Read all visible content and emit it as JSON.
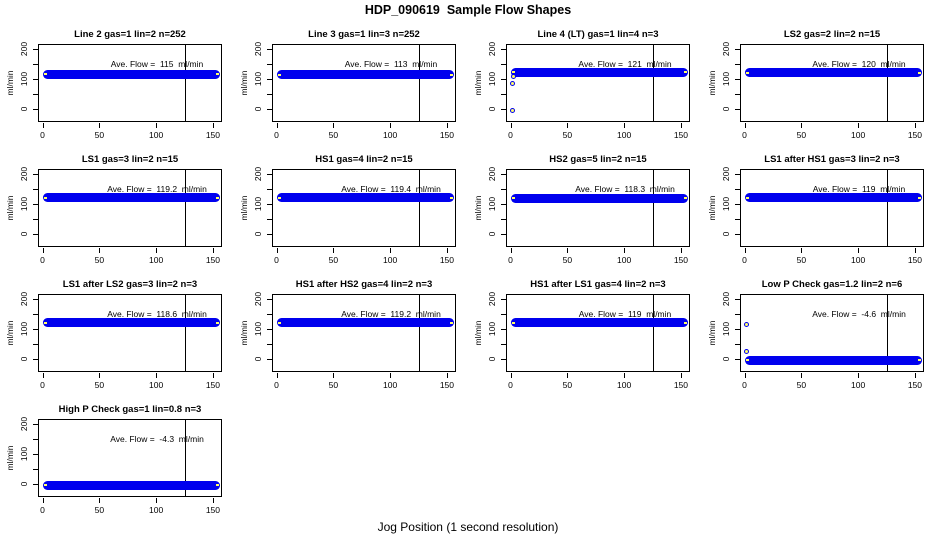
{
  "figure": {
    "title": "HDP_090619  Sample Flow Shapes",
    "xlabel": "Jog Position (1 second resolution)"
  },
  "chart_data": {
    "type": "scatter",
    "title": "HDP_090619  Sample Flow Shapes",
    "xlabel": "Jog Position (1 second resolution)",
    "ylabel": "ml/min",
    "layout": {
      "columns": 4,
      "rows": 4,
      "panel_count": 13,
      "grid": "on: none"
    },
    "x_ticks": [
      0,
      50,
      100,
      150
    ],
    "y_ticks_labeled": [
      0,
      100,
      200
    ],
    "y_ticks_all": [
      0,
      50,
      100,
      150,
      200
    ],
    "xlim": [
      -4,
      158
    ],
    "ylim": [
      -45,
      215
    ],
    "vline_x": 125,
    "band_x_range": [
      0,
      156
    ],
    "colors": {
      "points_blue": "#0000EE",
      "marker_fill_yellow": "#FFFF66",
      "reference_line": "#000000",
      "frame": "#000000",
      "background": "#FFFFFF"
    },
    "plots": [
      {
        "title": "Line 2 gas=1 lin=2 n=252",
        "ave_flow": 115,
        "annotation": "Ave. Flow =  115  ml/min",
        "band_y": 115,
        "outliers": []
      },
      {
        "title": "Line 3 gas=1 lin=3 n=252",
        "ave_flow": 113,
        "annotation": "Ave. Flow =  113  ml/min",
        "band_y": 113,
        "outliers": []
      },
      {
        "title": "Line 4 (LT) gas=1 lin=4 n=3",
        "ave_flow": 121,
        "annotation": "Ave. Flow =  121  ml/min",
        "band_y": 121,
        "outliers": [
          [
            2,
            -5
          ],
          [
            2,
            83
          ],
          [
            3,
            107
          ]
        ]
      },
      {
        "title": "LS2 gas=2 lin=2 n=15",
        "ave_flow": 120,
        "annotation": "Ave. Flow =  120  ml/min",
        "band_y": 120,
        "outliers": []
      },
      {
        "title": "LS1 gas=3 lin=2 n=15",
        "ave_flow": 119.2,
        "annotation": "Ave. Flow =  119.2  ml/min",
        "band_y": 119.2,
        "outliers": []
      },
      {
        "title": "HS1 gas=4 lin=2 n=15",
        "ave_flow": 119.4,
        "annotation": "Ave. Flow =  119.4  ml/min",
        "band_y": 119.4,
        "outliers": []
      },
      {
        "title": "HS2 gas=5 lin=2 n=15",
        "ave_flow": 118.3,
        "annotation": "Ave. Flow =  118.3  ml/min",
        "band_y": 118.3,
        "outliers": []
      },
      {
        "title": "LS1 after HS1 gas=3 lin=2 n=3",
        "ave_flow": 119,
        "annotation": "Ave. Flow =  119  ml/min",
        "band_y": 119,
        "outliers": []
      },
      {
        "title": "LS1 after LS2 gas=3 lin=2 n=3",
        "ave_flow": 118.6,
        "annotation": "Ave. Flow =  118.6  ml/min",
        "band_y": 118.6,
        "outliers": []
      },
      {
        "title": "HS1 after HS2 gas=4 lin=2 n=3",
        "ave_flow": 119.2,
        "annotation": "Ave. Flow =  119.2  ml/min",
        "band_y": 119.2,
        "outliers": []
      },
      {
        "title": "HS1 after LS1 gas=4 lin=2 n=3",
        "ave_flow": 119,
        "annotation": "Ave. Flow =  119  ml/min",
        "band_y": 119,
        "outliers": []
      },
      {
        "title": "Low P Check gas=1.2 lin=2 n=6",
        "ave_flow": -4.6,
        "annotation": "Ave. Flow =  -4.6  ml/min",
        "band_y": -5,
        "outliers": [
          [
            2,
            115
          ],
          [
            2,
            25
          ]
        ]
      },
      {
        "title": "High P Check gas=1 lin=0.8 n=3",
        "ave_flow": -4.3,
        "annotation": "Ave. Flow =  -4.3  ml/min",
        "band_y": -5,
        "outliers": []
      }
    ]
  }
}
